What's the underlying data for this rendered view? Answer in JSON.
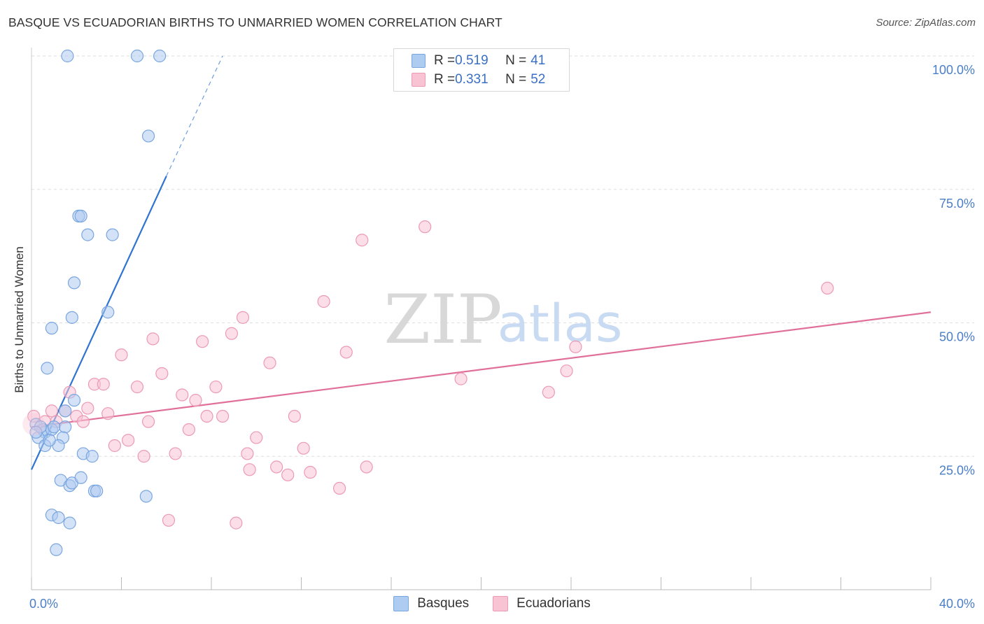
{
  "title": "BASQUE VS ECUADORIAN BIRTHS TO UNMARRIED WOMEN CORRELATION CHART",
  "source": "Source: ZipAtlas.com",
  "watermark": {
    "zip": "ZIP",
    "atlas": "atlas"
  },
  "colors": {
    "basque_fill": "#aecbf0",
    "basque_stroke": "#7aa6e0",
    "basque_line": "#2f74d0",
    "ecuador_fill": "#f8c3d3",
    "ecuador_stroke": "#ec9ab5",
    "ecuador_line": "#e07099",
    "tick_text": "#4a7fc8",
    "grid": "#dddddd"
  },
  "legend": {
    "rows": [
      {
        "r_label": "R = ",
        "r_value": "0.519",
        "n_label": "N = ",
        "n_value": "41"
      },
      {
        "r_label": "R = ",
        "r_value": "0.331",
        "n_label": "N = ",
        "n_value": "52"
      }
    ]
  },
  "bottom_legend": {
    "basques": "Basques",
    "ecuadorians": "Ecuadorians"
  },
  "chart_data": {
    "type": "scatter",
    "title": "BASQUE VS ECUADORIAN BIRTHS TO UNMARRIED WOMEN CORRELATION CHART",
    "xlabel": "",
    "ylabel": "Births to Unmarried Women",
    "xlim": [
      0,
      40
    ],
    "ylim": [
      0,
      105
    ],
    "x_tick_labels": [
      "0.0%",
      "40.0%"
    ],
    "y_ticks": [
      25,
      50,
      75,
      100
    ],
    "y_tick_labels": [
      "25.0%",
      "50.0%",
      "75.0%",
      "100.0%"
    ],
    "grid": true,
    "series": [
      {
        "name": "Basques",
        "r": 0.519,
        "n": 41,
        "trend": {
          "x0": 0,
          "y0": 22.5,
          "x1": 6.0,
          "y1": 77.5,
          "dash_to_x": 8.5,
          "dash_to_y": 100
        },
        "points": [
          [
            1.6,
            100
          ],
          [
            4.7,
            100
          ],
          [
            5.7,
            100
          ],
          [
            5.2,
            85
          ],
          [
            2.1,
            70
          ],
          [
            2.2,
            70
          ],
          [
            2.5,
            66.5
          ],
          [
            3.6,
            66.5
          ],
          [
            1.9,
            57.5
          ],
          [
            3.4,
            52
          ],
          [
            1.8,
            51
          ],
          [
            0.9,
            49
          ],
          [
            0.7,
            41.5
          ],
          [
            1.9,
            35.5
          ],
          [
            1.5,
            33.5
          ],
          [
            0.2,
            31
          ],
          [
            0.5,
            30
          ],
          [
            0.6,
            29.5
          ],
          [
            0.9,
            30
          ],
          [
            1.5,
            30.5
          ],
          [
            0.3,
            28.5
          ],
          [
            1.4,
            28.5
          ],
          [
            0.6,
            27
          ],
          [
            1.2,
            27
          ],
          [
            2.3,
            25.5
          ],
          [
            2.7,
            25
          ],
          [
            1.3,
            20.5
          ],
          [
            1.7,
            19.5
          ],
          [
            1.8,
            20
          ],
          [
            2.2,
            21
          ],
          [
            2.8,
            18.5
          ],
          [
            2.9,
            18.5
          ],
          [
            5.1,
            17.5
          ],
          [
            0.9,
            14
          ],
          [
            1.2,
            13.5
          ],
          [
            1.7,
            12.5
          ],
          [
            1.1,
            7.5
          ],
          [
            0.4,
            30.5
          ],
          [
            1.0,
            30.5
          ],
          [
            0.2,
            29.5
          ],
          [
            0.8,
            28
          ]
        ]
      },
      {
        "name": "Ecuadorians",
        "r": 0.331,
        "n": 52,
        "trend": {
          "x0": 0,
          "y0": 30.5,
          "x1": 40,
          "y1": 52
        },
        "points": [
          [
            0.1,
            32.5
          ],
          [
            0.6,
            31.5
          ],
          [
            0.9,
            33.5
          ],
          [
            1.1,
            31.5
          ],
          [
            1.5,
            33.5
          ],
          [
            1.7,
            37
          ],
          [
            2.0,
            32.5
          ],
          [
            2.3,
            31.5
          ],
          [
            2.5,
            34
          ],
          [
            2.8,
            38.5
          ],
          [
            3.2,
            38.5
          ],
          [
            3.4,
            33
          ],
          [
            3.7,
            27
          ],
          [
            4.0,
            44
          ],
          [
            4.3,
            28
          ],
          [
            4.7,
            38
          ],
          [
            5.0,
            25
          ],
          [
            5.2,
            31.5
          ],
          [
            5.4,
            47
          ],
          [
            5.8,
            40.5
          ],
          [
            6.1,
            13
          ],
          [
            6.4,
            25.5
          ],
          [
            6.7,
            36.5
          ],
          [
            7.0,
            30
          ],
          [
            7.3,
            35.5
          ],
          [
            7.6,
            46.5
          ],
          [
            7.8,
            32.5
          ],
          [
            8.2,
            38
          ],
          [
            8.5,
            32.5
          ],
          [
            8.9,
            48
          ],
          [
            9.1,
            12.5
          ],
          [
            9.4,
            51
          ],
          [
            9.6,
            25.5
          ],
          [
            9.7,
            22.5
          ],
          [
            10.0,
            28.5
          ],
          [
            10.6,
            42.5
          ],
          [
            10.9,
            23
          ],
          [
            11.4,
            21.5
          ],
          [
            11.7,
            32.5
          ],
          [
            12.1,
            26.5
          ],
          [
            12.4,
            22
          ],
          [
            13.0,
            54
          ],
          [
            13.7,
            19
          ],
          [
            14.0,
            44.5
          ],
          [
            14.7,
            65.5
          ],
          [
            14.9,
            23
          ],
          [
            17.5,
            68
          ],
          [
            19.1,
            39.5
          ],
          [
            23.0,
            37
          ],
          [
            23.8,
            41
          ],
          [
            24.2,
            45.5
          ],
          [
            35.4,
            56.5
          ]
        ]
      }
    ]
  }
}
